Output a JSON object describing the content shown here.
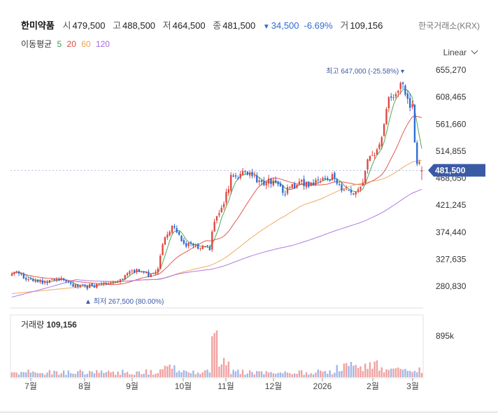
{
  "header": {
    "stock_name": "한미약품",
    "open_label": "시",
    "open": "479,500",
    "high_label": "고",
    "high": "488,500",
    "low_label": "저",
    "low": "464,500",
    "close_label": "종",
    "close": "481,500",
    "change_arrow": "▼",
    "change": "34,500",
    "change_pct": "-6.69%",
    "volume_label": "거",
    "volume": "109,156",
    "exchange": "한국거래소(KRX)"
  },
  "moving_average": {
    "label": "이동평균",
    "periods": [
      {
        "label": "5",
        "color": "#3aa04a"
      },
      {
        "label": "20",
        "color": "#e0463f"
      },
      {
        "label": "60",
        "color": "#f0a050"
      },
      {
        "label": "120",
        "color": "#a56be0"
      }
    ]
  },
  "scale_mode": "Linear",
  "colors": {
    "up": "#e0463f",
    "down": "#2f6bd3",
    "price_tag": "#3b5aa6",
    "volume_up": "#f0a0a0",
    "volume_down": "#9fb7e6"
  },
  "chart_data": {
    "type": "candlestick",
    "y_ticks": [
      "655,270",
      "608,465",
      "561,660",
      "514,855",
      "468,050",
      "421,245",
      "374,440",
      "327,635",
      "280,830"
    ],
    "ylim": [
      258000,
      672000
    ],
    "x_ticks": [
      "7월",
      "8월",
      "9월",
      "10월",
      "11월",
      "12월",
      "2026",
      "2월",
      "3월"
    ],
    "high_marker": "최고 647,000 (-25.58%)",
    "low_marker": "최저 267,500 (80.00%)",
    "current_price_tag": "481,500",
    "volume_title": "거래량",
    "volume_value": "109,156",
    "volume_axis_tick": "895k",
    "ohlc": [],
    "volume": []
  }
}
